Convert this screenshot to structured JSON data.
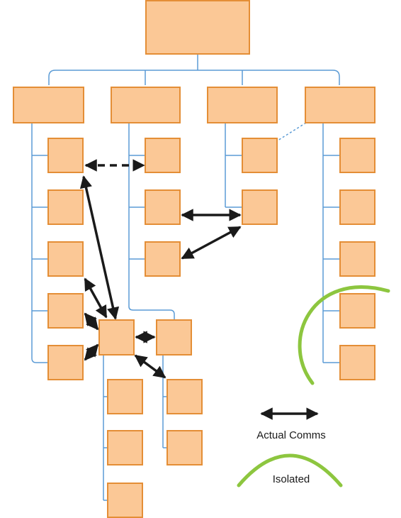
{
  "colors": {
    "box_fill": "#fbc896",
    "box_stroke": "#e48e36",
    "connector": "#5b9bd5",
    "comms_arrow": "#1a1a1a",
    "isolated_arc": "#8dc63f"
  },
  "legend": {
    "actual_comms_label": "Actual Comms",
    "isolated_label": "Isolated"
  }
}
